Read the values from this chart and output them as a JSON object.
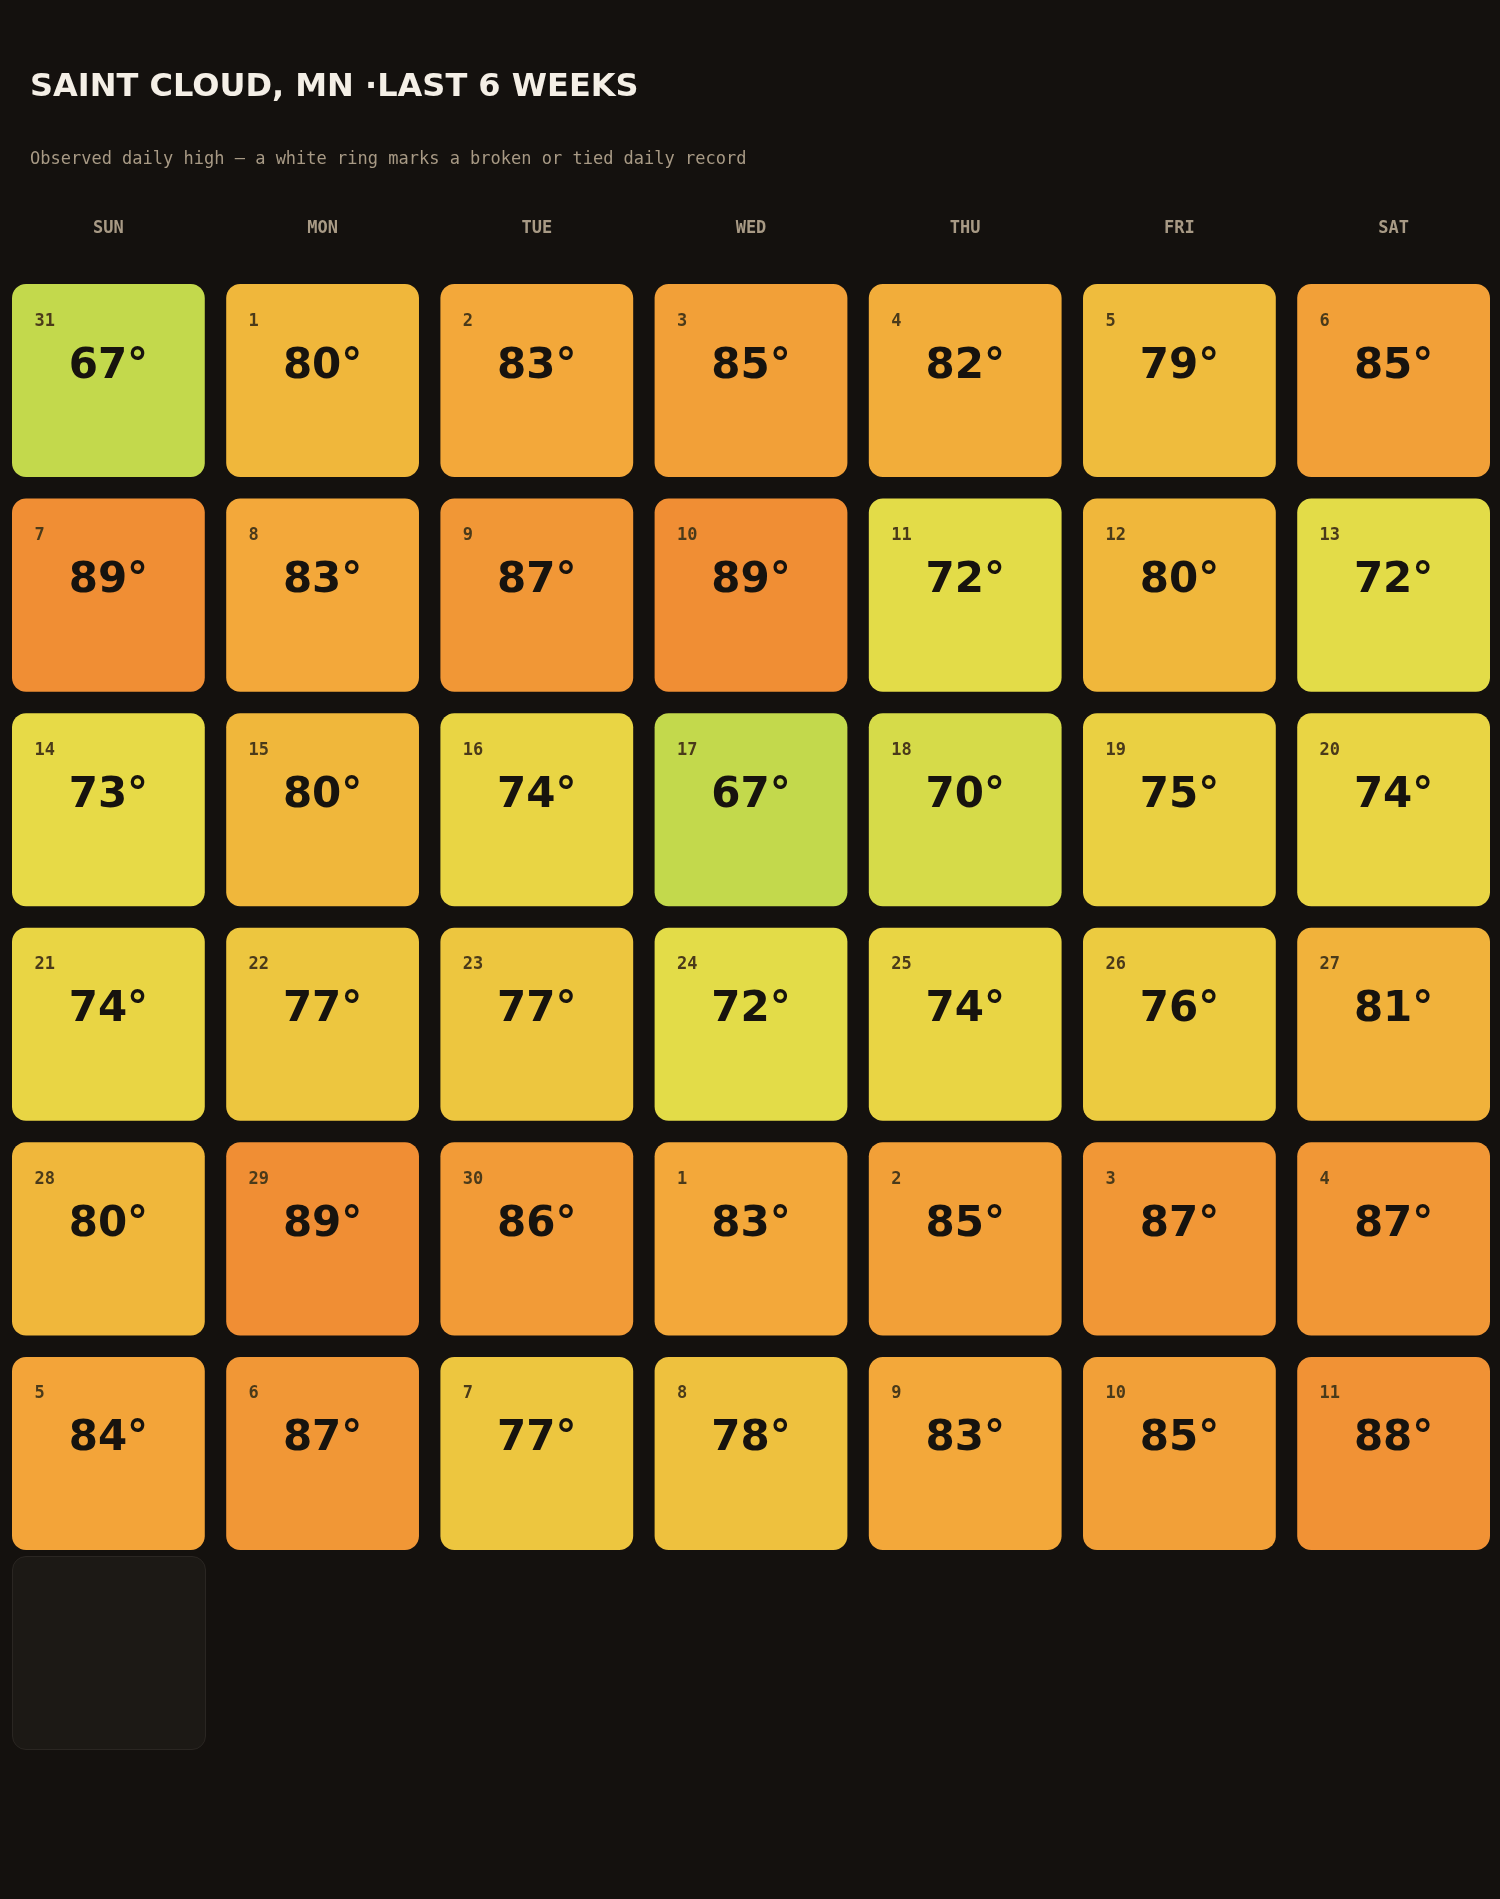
{
  "chart_data": {
    "type": "heatmap",
    "title": "SAINT CLOUD, MN ·LAST 6 WEEKS",
    "subtitle": "Observed daily high — a white ring marks a broken or tied daily record",
    "categories": [
      "SUN",
      "MON",
      "TUE",
      "WED",
      "THU",
      "FRI",
      "SAT"
    ],
    "y_categories": [
      null,
      null,
      null,
      null,
      null,
      null
    ],
    "cells": [
      [
        67,
        80,
        83,
        85,
        82,
        79,
        85
      ],
      [
        89,
        83,
        87,
        89,
        72,
        80,
        72
      ],
      [
        73,
        80,
        74,
        67,
        70,
        75,
        74
      ],
      [
        74,
        77,
        77,
        72,
        74,
        76,
        81
      ],
      [
        80,
        89,
        86,
        83,
        85,
        87,
        87
      ],
      [
        84,
        87,
        77,
        78,
        83,
        85,
        88
      ]
    ],
    "cell_labels": [
      [
        "67°",
        "80°",
        "83°",
        "85°",
        "82°",
        "79°",
        "85°"
      ],
      [
        "89°",
        "83°",
        "87°",
        "89°",
        "72°",
        "80°",
        "72°"
      ],
      [
        "73°",
        "80°",
        "74°",
        "67°",
        "70°",
        "75°",
        "74°"
      ],
      [
        "74°",
        "77°",
        "77°",
        "72°",
        "74°",
        "76°",
        "81°"
      ],
      [
        "80°",
        "89°",
        "86°",
        "83°",
        "85°",
        "87°",
        "87°"
      ],
      [
        "84°",
        "87°",
        "77°",
        "78°",
        "83°",
        "85°",
        "88°"
      ]
    ],
    "annotations": [
      "31",
      "1",
      "2",
      "3",
      "4",
      "5",
      "6",
      "7",
      "8",
      "9",
      "10",
      "11",
      "12",
      "13",
      "14",
      "15",
      "16",
      "17",
      "18",
      "19",
      "20",
      "21",
      "22",
      "23",
      "24",
      "25",
      "26",
      "27",
      "28",
      "29",
      "30",
      "1",
      "2",
      "3",
      "4",
      "5",
      "6",
      "7",
      "8",
      "9",
      "10",
      "11"
    ],
    "tick_labels": "x"
  }
}
